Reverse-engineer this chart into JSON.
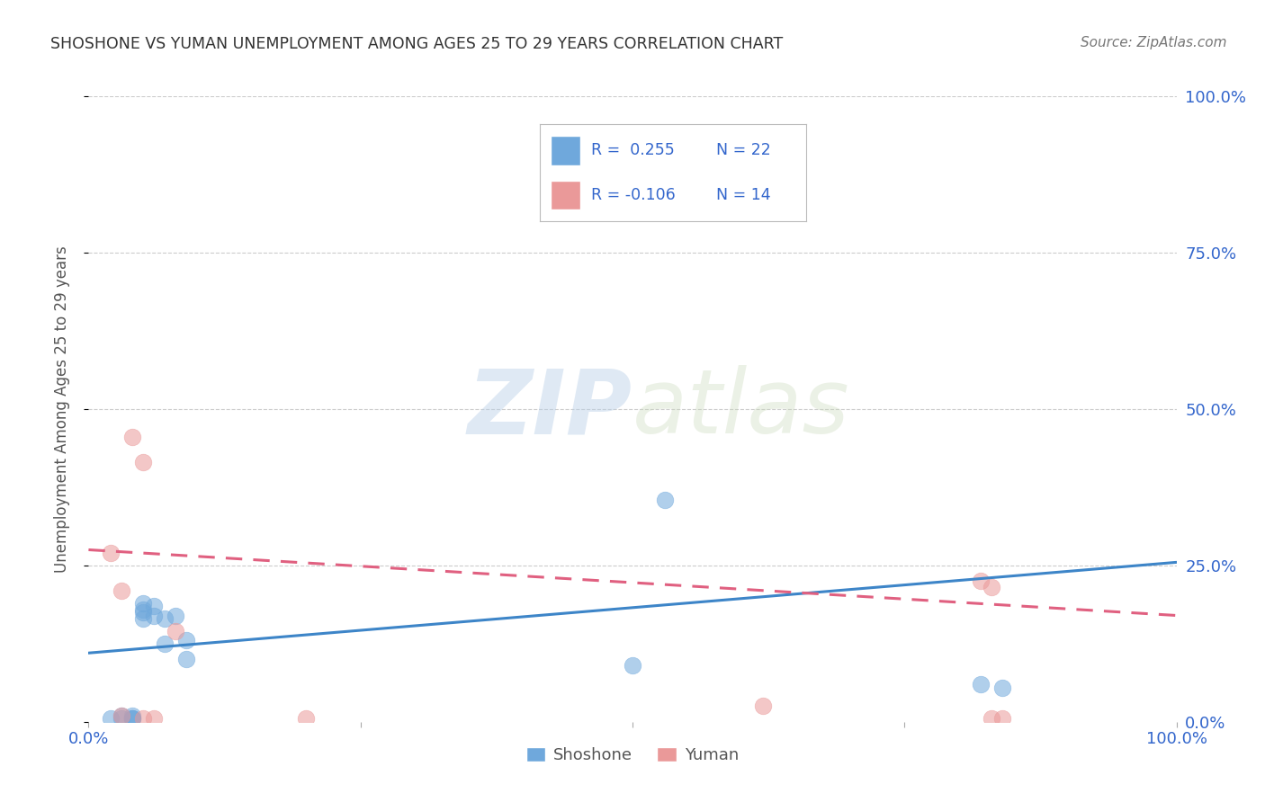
{
  "title": "SHOSHONE VS YUMAN UNEMPLOYMENT AMONG AGES 25 TO 29 YEARS CORRELATION CHART",
  "source": "Source: ZipAtlas.com",
  "ylabel": "Unemployment Among Ages 25 to 29 years",
  "xlim": [
    0.0,
    1.0
  ],
  "ylim": [
    0.0,
    1.0
  ],
  "shoshone_R": 0.255,
  "shoshone_N": 22,
  "yuman_R": -0.106,
  "yuman_N": 14,
  "shoshone_color": "#6fa8dc",
  "yuman_color": "#ea9999",
  "shoshone_line_color": "#3d85c8",
  "yuman_line_color": "#e06080",
  "background_color": "#ffffff",
  "grid_color": "#cccccc",
  "title_color": "#333333",
  "axis_label_color": "#555555",
  "tick_color_blue": "#3366cc",
  "legend_shoshone_label": "Shoshone",
  "legend_yuman_label": "Yuman",
  "shoshone_scatter_x": [
    0.02,
    0.03,
    0.03,
    0.04,
    0.04,
    0.04,
    0.04,
    0.05,
    0.05,
    0.05,
    0.05,
    0.06,
    0.06,
    0.07,
    0.07,
    0.08,
    0.09,
    0.09,
    0.5,
    0.53,
    0.82,
    0.84
  ],
  "shoshone_scatter_y": [
    0.005,
    0.01,
    0.005,
    0.005,
    0.005,
    0.005,
    0.01,
    0.19,
    0.18,
    0.165,
    0.175,
    0.185,
    0.17,
    0.165,
    0.125,
    0.17,
    0.1,
    0.13,
    0.09,
    0.355,
    0.06,
    0.055
  ],
  "yuman_scatter_x": [
    0.02,
    0.03,
    0.03,
    0.04,
    0.05,
    0.05,
    0.06,
    0.08,
    0.2,
    0.62,
    0.82,
    0.83,
    0.83,
    0.84
  ],
  "yuman_scatter_y": [
    0.27,
    0.21,
    0.01,
    0.455,
    0.415,
    0.005,
    0.005,
    0.145,
    0.005,
    0.025,
    0.225,
    0.215,
    0.005,
    0.005
  ],
  "shoshone_line_x": [
    0.0,
    1.0
  ],
  "shoshone_line_y": [
    0.11,
    0.255
  ],
  "yuman_line_x": [
    0.0,
    1.0
  ],
  "yuman_line_y": [
    0.275,
    0.17
  ],
  "watermark_zip": "ZIP",
  "watermark_atlas": "atlas"
}
